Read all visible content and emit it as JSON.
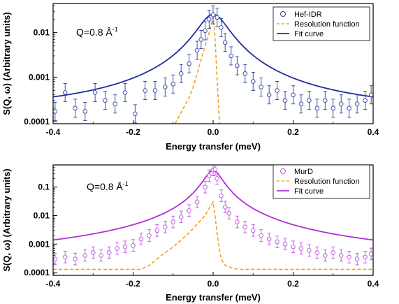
{
  "chart_data": [
    {
      "type": "scatter",
      "xlabel": "Energy transfer (meV)",
      "ylabel": "S(Q, ω) (Arbitrary units)",
      "yscale": "log",
      "xlim": [
        -0.4,
        0.4
      ],
      "ylim": [
        9e-05,
        0.045
      ],
      "xticks": [
        -0.4,
        -0.2,
        0.0,
        0.2,
        0.4
      ],
      "xtick_labels": [
        "-0.4",
        "-0.2",
        "0.0",
        "0.2",
        "0.4"
      ],
      "yticks": [
        0.0001,
        0.001,
        0.01
      ],
      "ytick_labels": [
        "0.0001",
        "0.001",
        "0.01"
      ],
      "annotation": "Q=0.8 Å",
      "annotation_sup": "-1",
      "legend_position": "top-right",
      "legend": [
        "Hef-IDR",
        "Resolution function",
        "Fit curve"
      ],
      "colors": {
        "data": "#2b3fa0",
        "resolution": "#f4a020",
        "fit": "#1f2d9e"
      },
      "fit": {
        "amplitude": 0.0255,
        "gamma": 0.036,
        "background": 0.000155
      },
      "resolution": {
        "x": [
          -0.095,
          -0.08,
          -0.06,
          -0.05,
          -0.04,
          -0.03,
          -0.02,
          -0.01,
          -0.005,
          0.0,
          0.004,
          0.008,
          0.012,
          0.016
        ],
        "y": [
          9e-05,
          0.00016,
          0.00035,
          0.0006,
          0.0012,
          0.0025,
          0.005,
          0.01,
          0.015,
          0.022,
          0.01,
          0.002,
          0.0004,
          9e-05
        ]
      },
      "series": [
        {
          "name": "Hef-IDR",
          "x": [
            -0.395,
            -0.37,
            -0.345,
            -0.32,
            -0.295,
            -0.27,
            -0.245,
            -0.22,
            -0.195,
            -0.17,
            -0.145,
            -0.12,
            -0.1,
            -0.08,
            -0.06,
            -0.04,
            -0.03,
            -0.02,
            -0.01,
            0.0,
            0.01,
            0.02,
            0.03,
            0.045,
            0.06,
            0.08,
            0.1,
            0.12,
            0.14,
            0.16,
            0.18,
            0.2,
            0.22,
            0.24,
            0.26,
            0.28,
            0.3,
            0.32,
            0.34,
            0.36,
            0.38,
            0.395
          ],
          "y": [
            0.00017,
            0.00045,
            0.0002,
            0.00017,
            0.00045,
            0.0003,
            0.00025,
            0.00045,
            0.00015,
            0.0005,
            0.0005,
            0.0006,
            0.0007,
            0.0012,
            0.002,
            0.004,
            0.007,
            0.011,
            0.02,
            0.025,
            0.022,
            0.013,
            0.006,
            0.003,
            0.0018,
            0.0012,
            0.0008,
            0.0006,
            0.0004,
            0.0005,
            0.0003,
            0.0004,
            0.00025,
            0.0003,
            0.0002,
            0.0003,
            0.0002,
            0.00025,
            0.0002,
            0.00025,
            0.0003,
            0.0004
          ]
        }
      ]
    },
    {
      "type": "scatter",
      "xlabel": "Energy transfer (meV)",
      "ylabel": "S(Q, ω) (Arbitrary units)",
      "yscale": "log",
      "xlim": [
        -0.4,
        0.4
      ],
      "ylim": [
        8e-05,
        0.6
      ],
      "xticks": [
        -0.4,
        -0.2,
        0.0,
        0.2,
        0.4
      ],
      "xtick_labels": [
        "-0.4",
        "-0.2",
        "0.0",
        "0.2",
        "0.4"
      ],
      "yticks": [
        0.0001,
        0.001,
        0.01,
        0.1
      ],
      "ytick_labels": [
        "0.0001",
        "0.001",
        "0.01",
        "0.1"
      ],
      "annotation": "Q=0.8 Å",
      "annotation_sup": "-1",
      "legend_position": "top-right",
      "legend": [
        "MurD",
        "Resolution function",
        "Fit curve"
      ],
      "colors": {
        "data": "#c050e8",
        "resolution": "#f4a020",
        "fit": "#b030d8"
      },
      "fit": {
        "amplitude": 0.38,
        "gamma": 0.022,
        "background": 0.00025
      },
      "resolution": {
        "x": [
          -0.4,
          -0.18,
          -0.16,
          -0.14,
          -0.12,
          -0.1,
          -0.08,
          -0.06,
          -0.04,
          -0.02,
          -0.01,
          0.0,
          0.004,
          0.008,
          0.012,
          0.016,
          0.02,
          0.03,
          0.05,
          0.07,
          0.1,
          0.4
        ],
        "y": [
          0.00013,
          0.00013,
          0.00018,
          0.0003,
          0.0005,
          0.0008,
          0.0014,
          0.0025,
          0.005,
          0.01,
          0.018,
          0.03,
          0.012,
          0.004,
          0.0015,
          0.0006,
          0.0003,
          0.00018,
          0.00014,
          0.00013,
          0.00013,
          0.00013
        ]
      },
      "series": [
        {
          "name": "MurD",
          "x": [
            -0.395,
            -0.37,
            -0.345,
            -0.32,
            -0.3,
            -0.28,
            -0.26,
            -0.24,
            -0.22,
            -0.2,
            -0.18,
            -0.16,
            -0.14,
            -0.12,
            -0.1,
            -0.08,
            -0.06,
            -0.04,
            -0.02,
            -0.01,
            0.0,
            0.005,
            0.01,
            0.02,
            0.03,
            0.04,
            0.06,
            0.08,
            0.1,
            0.12,
            0.14,
            0.16,
            0.18,
            0.2,
            0.22,
            0.24,
            0.26,
            0.28,
            0.3,
            0.32,
            0.34,
            0.36,
            0.38,
            0.395
          ],
          "y": [
            0.0003,
            0.00035,
            0.0003,
            0.0004,
            0.0005,
            0.0004,
            0.0005,
            0.0007,
            0.0008,
            0.0009,
            0.0015,
            0.002,
            0.003,
            0.004,
            0.006,
            0.009,
            0.015,
            0.03,
            0.1,
            0.25,
            0.4,
            0.42,
            0.2,
            0.05,
            0.02,
            0.012,
            0.006,
            0.004,
            0.003,
            0.002,
            0.0015,
            0.0012,
            0.001,
            0.0008,
            0.0007,
            0.0006,
            0.0005,
            0.0004,
            0.0005,
            0.0004,
            0.00035,
            0.0003,
            0.00035,
            0.00045
          ]
        }
      ]
    }
  ]
}
